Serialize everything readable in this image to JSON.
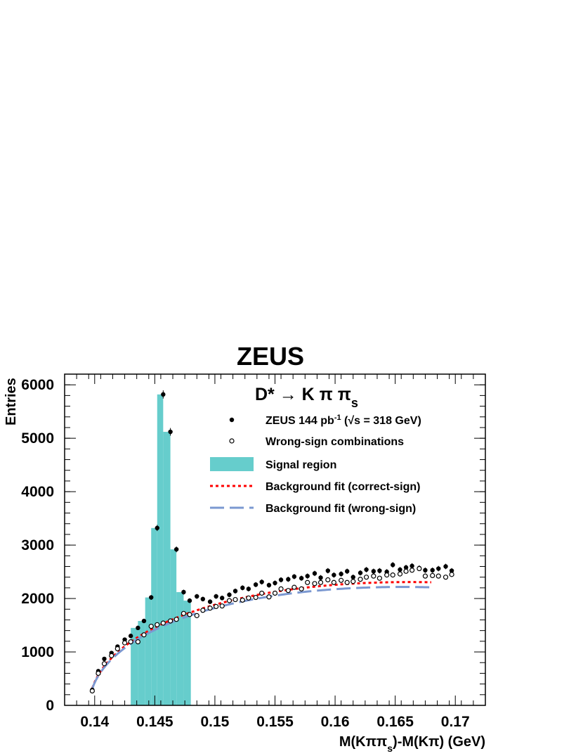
{
  "experiment_label": "ZEUS",
  "chart_data": {
    "type": "scatter",
    "title": "D* → K π π_s",
    "xlabel": "M(Kππ_s)-M(Kπ) (GeV)",
    "ylabel": "Entries",
    "xlim": [
      0.1375,
      0.1725
    ],
    "ylim": [
      0,
      6200
    ],
    "x_ticks": [
      "0.14",
      "0.145",
      "0.15",
      "0.155",
      "0.16",
      "0.165",
      "0.17"
    ],
    "y_ticks": [
      "0",
      "1000",
      "2000",
      "3000",
      "4000",
      "5000",
      "6000"
    ],
    "legend_placement": "top-right",
    "legend": {
      "data": {
        "main": "ZEUS 144 pb",
        "sup": "-1",
        "cond": " (√s = 318 GeV)"
      },
      "wrong_sign": "Wrong-sign combinations",
      "signal": "Signal region",
      "fit_correct": "Background fit (correct-sign)",
      "fit_wrong": "Background fit (wrong-sign)"
    },
    "colors": {
      "signal": "#66cdcc",
      "fit_correct": "#ff0000",
      "fit_wrong": "#7b98d1",
      "points": "#000000"
    },
    "series": [
      {
        "name": "ZEUS 144 pb-1 (√s = 318 GeV)",
        "marker": "filled-circle",
        "x": [
          0.1398,
          0.1403,
          0.1408,
          0.1414,
          0.1419,
          0.1425,
          0.143,
          0.1436,
          0.1441,
          0.1447,
          0.1452,
          0.1457,
          0.1463,
          0.1468,
          0.1474,
          0.1479,
          0.1485,
          0.149,
          0.1496,
          0.1501,
          0.1506,
          0.1512,
          0.1517,
          0.1523,
          0.1528,
          0.1534,
          0.1539,
          0.1545,
          0.155,
          0.1555,
          0.1561,
          0.1566,
          0.1572,
          0.1577,
          0.1583,
          0.1588,
          0.1594,
          0.1599,
          0.1605,
          0.161,
          0.1615,
          0.1621,
          0.1626,
          0.1632,
          0.1637,
          0.1643,
          0.1648,
          0.1654,
          0.1659,
          0.1664,
          0.167,
          0.1675,
          0.1681,
          0.1686,
          0.1692,
          0.1697
        ],
        "y": [
          290,
          640,
          870,
          980,
          1100,
          1230,
          1300,
          1450,
          1580,
          2020,
          3320,
          5820,
          5120,
          2920,
          2120,
          1960,
          2040,
          1990,
          1940,
          2040,
          2010,
          2070,
          2140,
          2200,
          2180,
          2260,
          2310,
          2250,
          2290,
          2350,
          2360,
          2410,
          2380,
          2420,
          2470,
          2390,
          2520,
          2440,
          2460,
          2510,
          2400,
          2480,
          2540,
          2510,
          2520,
          2500,
          2630,
          2540,
          2580,
          2610,
          2570,
          2530,
          2530,
          2560,
          2600,
          2520
        ]
      },
      {
        "name": "Wrong-sign combinations",
        "marker": "open-circle",
        "x": [
          0.1398,
          0.1403,
          0.1408,
          0.1414,
          0.1419,
          0.1425,
          0.143,
          0.1436,
          0.1441,
          0.1447,
          0.1452,
          0.1457,
          0.1463,
          0.1468,
          0.1474,
          0.1479,
          0.1485,
          0.149,
          0.1496,
          0.1501,
          0.1506,
          0.1512,
          0.1517,
          0.1523,
          0.1528,
          0.1534,
          0.1539,
          0.1545,
          0.155,
          0.1555,
          0.1561,
          0.1566,
          0.1572,
          0.1577,
          0.1583,
          0.1588,
          0.1594,
          0.1599,
          0.1605,
          0.161,
          0.1615,
          0.1621,
          0.1626,
          0.1632,
          0.1637,
          0.1643,
          0.1648,
          0.1654,
          0.1659,
          0.1664,
          0.167,
          0.1675,
          0.1681,
          0.1686,
          0.1692,
          0.1697
        ],
        "y": [
          270,
          600,
          780,
          930,
          1060,
          1170,
          1190,
          1190,
          1320,
          1480,
          1510,
          1540,
          1580,
          1610,
          1720,
          1700,
          1680,
          1780,
          1820,
          1850,
          1860,
          1960,
          1980,
          1970,
          2010,
          2020,
          2100,
          2030,
          2100,
          2180,
          2150,
          2210,
          2180,
          2300,
          2280,
          2300,
          2350,
          2300,
          2340,
          2300,
          2320,
          2360,
          2400,
          2420,
          2380,
          2440,
          2440,
          2460,
          2510,
          2530,
          2560,
          2420,
          2430,
          2420,
          2400,
          2450
        ]
      },
      {
        "name": "Background fit (correct-sign)",
        "style": "dotted",
        "x_range": [
          0.1398,
          0.168
        ],
        "function": "A*sqrt(x - m_pi)*(1 + B*(x - m_pi))",
        "params": {
          "A": 21200,
          "B": -12.5,
          "m_pi": 0.13957
        }
      },
      {
        "name": "Background fit (wrong-sign)",
        "style": "dashed",
        "x_range": [
          0.1398,
          0.168
        ],
        "function": "A*sqrt(x - m_pi)*(1 + B*(x - m_pi))",
        "params": {
          "A": 20600,
          "B": -12.8,
          "m_pi": 0.13957
        }
      }
    ],
    "signal_region": {
      "x_range": [
        0.143,
        0.148
      ],
      "bins": [
        {
          "x0": 0.143,
          "x1": 0.1436,
          "y": 1450
        },
        {
          "x0": 0.1436,
          "x1": 0.1442,
          "y": 1580
        },
        {
          "x0": 0.1442,
          "x1": 0.1447,
          "y": 2020
        },
        {
          "x0": 0.1447,
          "x1": 0.1452,
          "y": 3320
        },
        {
          "x0": 0.1452,
          "x1": 0.1457,
          "y": 5820
        },
        {
          "x0": 0.1457,
          "x1": 0.1463,
          "y": 5120
        },
        {
          "x0": 0.1463,
          "x1": 0.1468,
          "y": 2920
        },
        {
          "x0": 0.1468,
          "x1": 0.1474,
          "y": 2120
        },
        {
          "x0": 0.1474,
          "x1": 0.148,
          "y": 1960
        }
      ]
    }
  }
}
